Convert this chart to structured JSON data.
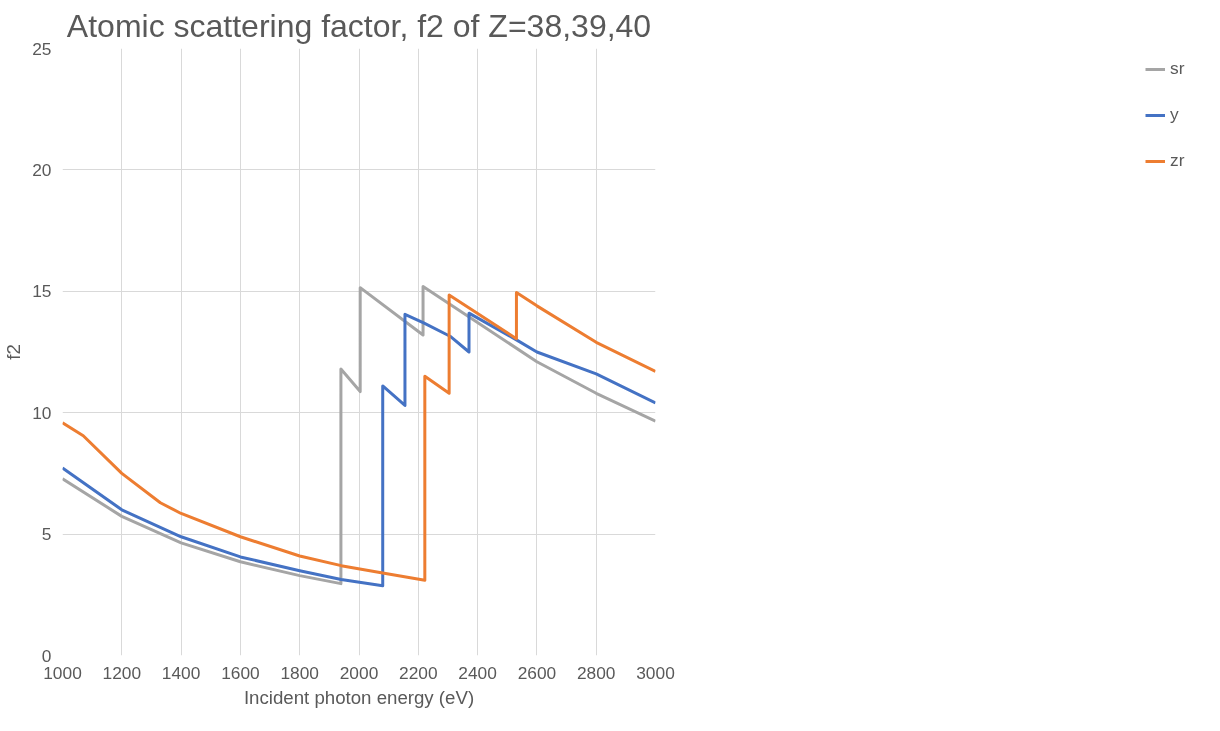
{
  "chart_data": {
    "type": "line",
    "title": "Atomic scattering factor, f2 of Z=38,39,40",
    "xlabel": "Incident photon energy (eV)",
    "ylabel": "f2",
    "xlim": [
      1000,
      3000
    ],
    "ylim": [
      0,
      25
    ],
    "xticks": [
      1000,
      1200,
      1400,
      1600,
      1800,
      2000,
      2200,
      2400,
      2600,
      2800,
      3000
    ],
    "yticks": [
      0,
      5,
      10,
      15,
      20,
      25
    ],
    "grid": true,
    "legend": "right",
    "line_style": "solid",
    "marker": "none",
    "series": [
      {
        "name": "sr",
        "color": "#a5a5a5",
        "x": [
          1000,
          1200,
          1400,
          1600,
          1800,
          1939,
          1939,
          2004,
          2004,
          2216,
          2216,
          2600,
          2800,
          3000
        ],
        "values": [
          7.28,
          5.73,
          4.64,
          3.86,
          3.29,
          2.96,
          11.8,
          10.87,
          15.15,
          13.2,
          15.2,
          12.1,
          10.8,
          9.65
        ]
      },
      {
        "name": "y",
        "color": "#4472c4",
        "x": [
          1000,
          1200,
          1400,
          1600,
          1800,
          1940,
          2080,
          2080,
          2155,
          2155,
          2218,
          2307,
          2371,
          2371,
          2531,
          2600,
          2800,
          3000
        ],
        "values": [
          7.72,
          6.0,
          4.89,
          4.06,
          3.49,
          3.13,
          2.87,
          11.1,
          10.3,
          14.05,
          13.7,
          13.15,
          12.5,
          14.1,
          13.0,
          12.5,
          11.6,
          10.4
        ]
      },
      {
        "name": "zr",
        "color": "#ed7d31",
        "x": [
          1000,
          1070,
          1200,
          1330,
          1400,
          1600,
          1800,
          1940,
          2080,
          2222,
          2222,
          2304,
          2304,
          2531,
          2531,
          2600,
          2800,
          3000
        ],
        "values": [
          9.58,
          9.05,
          7.5,
          6.29,
          5.85,
          4.89,
          4.1,
          3.7,
          3.4,
          3.1,
          11.5,
          10.8,
          14.85,
          13.05,
          14.95,
          14.4,
          12.9,
          11.7
        ]
      }
    ]
  }
}
